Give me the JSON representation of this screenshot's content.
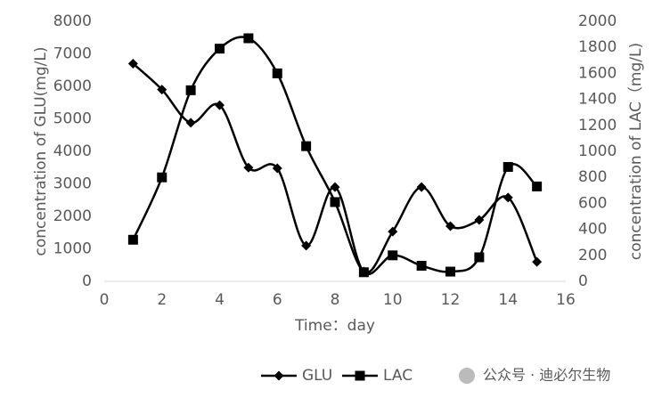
{
  "chart_data": {
    "type": "line",
    "x_label": "Time：day",
    "y_label": "concentration of GLU(mg/L)",
    "y2_label": "concentration of LAC（mg/L)",
    "x": [
      1,
      2,
      3,
      4,
      5,
      6,
      7,
      8,
      9,
      10,
      11,
      12,
      13,
      14,
      15
    ],
    "series": [
      {
        "name": "GLU",
        "color": "#000000",
        "marker": "diamond",
        "values": [
          6700,
          5900,
          4880,
          5420,
          3500,
          3480,
          1100,
          2900,
          300,
          1530,
          2900,
          1700,
          1890,
          2580,
          600
        ]
      },
      {
        "name": "LAC",
        "color": "#000000",
        "marker": "square",
        "axis": "y2",
        "values": [
          320,
          800,
          1470,
          1790,
          1870,
          1600,
          1040,
          610,
          70,
          200,
          120,
          75,
          185,
          880,
          730
        ]
      }
    ],
    "xlim": [
      0,
      16
    ],
    "xticks": [
      0,
      2,
      4,
      6,
      8,
      10,
      12,
      14,
      16
    ],
    "ylim": [
      0,
      8000
    ],
    "yticks": [
      0,
      1000,
      2000,
      3000,
      4000,
      5000,
      6000,
      7000,
      8000
    ],
    "y2lim": [
      0,
      2000
    ],
    "y2ticks": [
      0,
      200,
      400,
      600,
      800,
      1000,
      1200,
      1400,
      1600,
      1800,
      2000
    ],
    "smooth": true,
    "grid": false,
    "legend": "bottom",
    "watermark": "公众号 · 迪必尔生物"
  }
}
